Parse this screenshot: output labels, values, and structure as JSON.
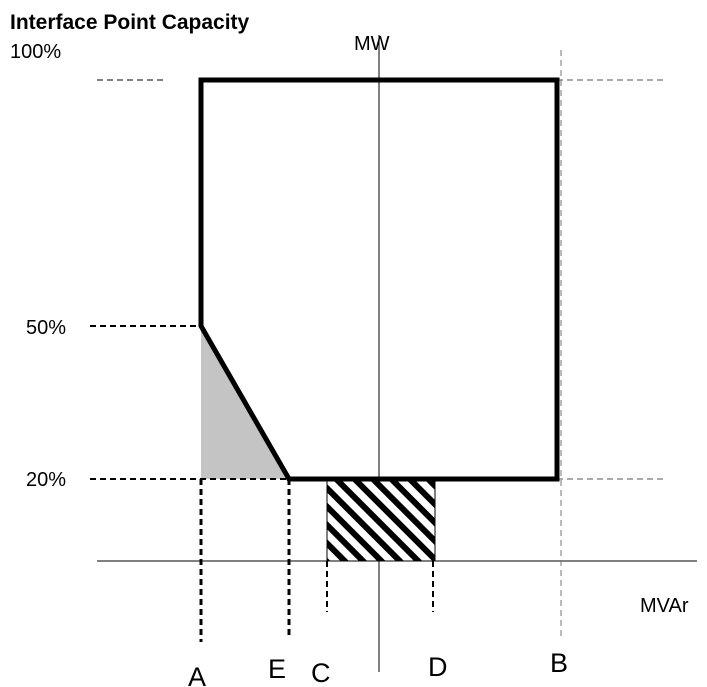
{
  "title": "Interface Point Capacity",
  "y_labels": [
    "100%",
    "50%",
    "20%"
  ],
  "axis_labels": {
    "y": "MW",
    "x": "MVAr"
  },
  "points": [
    "A",
    "E",
    "C",
    "D",
    "B"
  ]
}
